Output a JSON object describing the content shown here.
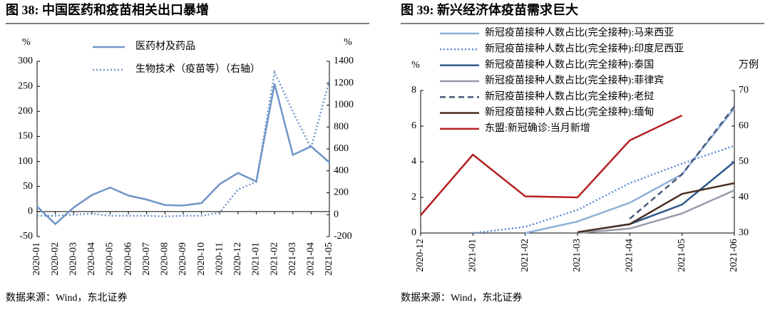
{
  "chart_data": [
    {
      "type": "line",
      "title": "图 38: 中国医药和疫苗相关出口暴增",
      "y_label": "%",
      "y2_label": "%",
      "source": "数据来源：Wind，东北证券",
      "categories": [
        "2020-01",
        "2020-02",
        "2020-03",
        "2020-04",
        "2020-05",
        "2020-06",
        "2020-07",
        "2020-08",
        "2020-09",
        "2020-10",
        "2020-11",
        "2020-12",
        "2021-01",
        "2021-02",
        "2021-03",
        "2021-04",
        "2021-05"
      ],
      "series": [
        {
          "name": "医药材及药品",
          "color": "#7096c8",
          "style": "solid",
          "values": [
            10,
            -25,
            8,
            33,
            48,
            32,
            24,
            13,
            12,
            17,
            55,
            77,
            60,
            255,
            113,
            130,
            98
          ]
        },
        {
          "name": "生物技术（疫苗等）（右轴）",
          "color": "#7096c8",
          "style": "dotted",
          "axis": "y2",
          "values": [
            -10,
            -10,
            0,
            10,
            -10,
            -10,
            -10,
            -15,
            -10,
            -10,
            20,
            230,
            300,
            1300,
            940,
            610,
            1225
          ]
        }
      ],
      "ylim": [
        -50,
        300
      ],
      "yticks": [
        -50,
        0,
        50,
        100,
        150,
        200,
        250,
        300
      ],
      "y2lim": [
        -200,
        1400
      ],
      "y2ticks": [
        -200,
        0,
        200,
        400,
        600,
        800,
        1000,
        1200,
        1400
      ],
      "grid": false
    },
    {
      "type": "line",
      "title": "图 39: 新兴经济体疫苗需求巨大",
      "y_label": "%",
      "y2_label": "万例",
      "source": "数据来源：Wind，东北证券",
      "categories": [
        "2020-12",
        "2021-01",
        "2021-02",
        "2021-03",
        "2021-04",
        "2021-05",
        "2021-06"
      ],
      "series": [
        {
          "name": "新冠疫苗接种人数占比(完全接种):马来西亚",
          "color": "#8fb0d8",
          "style": "solid",
          "values": [
            null,
            null,
            0,
            0.65,
            1.7,
            3.3,
            7.0
          ]
        },
        {
          "name": "新冠疫苗接种人数占比(完全接种):印度尼西亚",
          "color": "#5b8bd0",
          "style": "dotted",
          "values": [
            null,
            0,
            0.35,
            1.3,
            2.8,
            3.9,
            4.9
          ]
        },
        {
          "name": "新冠疫苗接种人数占比(完全接种):泰国",
          "color": "#2e5a8c",
          "style": "solid",
          "values": [
            null,
            null,
            null,
            0.05,
            0.5,
            1.6,
            4.0
          ]
        },
        {
          "name": "新冠疫苗接种人数占比(完全接种):菲律宾",
          "color": "#9a9aa8",
          "style": "solid",
          "values": [
            null,
            null,
            null,
            0,
            0.25,
            1.1,
            2.4
          ]
        },
        {
          "name": "新冠疫苗接种人数占比(完全接种):老挝",
          "color": "#4a5a7a",
          "style": "dashed",
          "values": [
            null,
            null,
            null,
            null,
            0.8,
            3.3,
            7.1
          ]
        },
        {
          "name": "新冠疫苗接种人数占比(完全接种):缅甸",
          "color": "#4a2e20",
          "style": "solid",
          "values": [
            null,
            null,
            null,
            0.05,
            0.5,
            2.2,
            2.8
          ]
        },
        {
          "name": "东盟:新冠确诊:当月新增",
          "color": "#b52020",
          "style": "solid",
          "axis": "y2",
          "values": [
            35,
            52,
            40.3,
            40,
            56,
            63,
            null
          ]
        }
      ],
      "ylim": [
        0,
        8
      ],
      "yticks": [
        0,
        2,
        4,
        6,
        8
      ],
      "y2lim": [
        30,
        70
      ],
      "y2ticks": [
        30,
        40,
        50,
        60,
        70
      ],
      "grid": false
    }
  ]
}
